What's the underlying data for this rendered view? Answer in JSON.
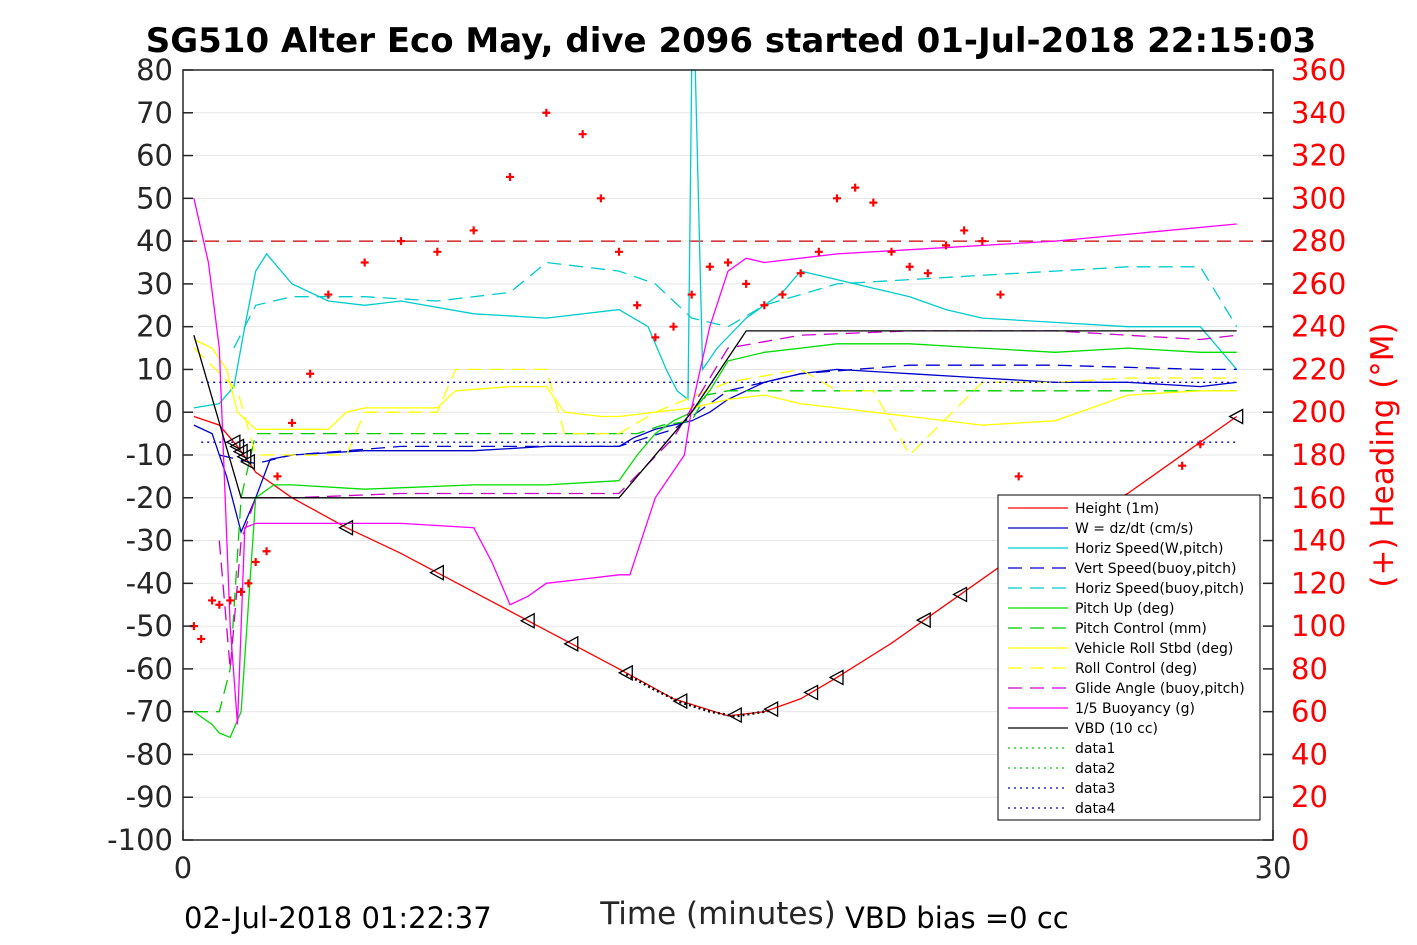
{
  "chart_data": {
    "type": "line",
    "title": "SG510 Alter Eco May, dive 2096 started 01-Jul-2018 22:15:03",
    "xlabel": "Time (minutes)",
    "ylabel_right": "(+) Heading (°M)",
    "xlim": [
      0,
      30
    ],
    "ylim_left": [
      -100,
      80
    ],
    "ylim_right": [
      0,
      360
    ],
    "x_ticks": [
      "0",
      "30"
    ],
    "y_ticks_left": [
      "80",
      "70",
      "60",
      "50",
      "40",
      "30",
      "20",
      "10",
      "0",
      "-10",
      "-20",
      "-30",
      "-40",
      "-50",
      "-60",
      "-70",
      "-80",
      "-90",
      "-100"
    ],
    "y_ticks_right": [
      "360",
      "340",
      "320",
      "300",
      "280",
      "260",
      "240",
      "220",
      "200",
      "180",
      "160",
      "140",
      "120",
      "100",
      "80",
      "60",
      "40",
      "20",
      "0"
    ],
    "grid": true,
    "legend_position": "bottom-right",
    "footer_left": "02-Jul-2018 01:22:37",
    "footer_right": "VBD bias =0 cc",
    "target_heading_deg": 280,
    "series": [
      {
        "name": "Height (1m)",
        "color": "#ff0000",
        "style": "solid",
        "x": [
          0.3,
          1.0,
          1.5,
          2.0,
          3.0,
          4.5,
          6.0,
          8.0,
          10.0,
          12.0,
          13.5,
          15.0,
          16.0,
          17.0,
          18.0,
          19.5,
          21.0,
          22.5,
          24.0,
          26.0,
          28.0,
          29.0
        ],
        "y": [
          -1,
          -3,
          -8,
          -14,
          -20,
          -27,
          -33,
          -42,
          -51,
          -60,
          -67,
          -71,
          -70,
          -67,
          -62,
          -54,
          -45,
          -36,
          -28,
          -19,
          -7,
          -1
        ]
      },
      {
        "name": "W = dz/dt (cm/s)",
        "color": "#0000cc",
        "style": "solid",
        "x": [
          0.3,
          0.8,
          1.2,
          1.6,
          2.0,
          2.4,
          3.0,
          5.0,
          8.0,
          10.0,
          12.0,
          12.4,
          13.0,
          14.0,
          14.5,
          15.0,
          16.0,
          17.0,
          18.0,
          20.0,
          22.0,
          24.0,
          26.0,
          28.0,
          29.0
        ],
        "y": [
          -3,
          -5,
          -15,
          -28,
          -20,
          -11,
          -10,
          -9,
          -9,
          -8,
          -8,
          -6,
          -4,
          -2,
          0,
          3,
          7,
          9,
          10,
          9,
          8,
          7,
          7,
          6,
          7
        ]
      },
      {
        "name": "Horiz Speed(W,pitch)",
        "color": "#00cccc",
        "style": "solid",
        "x": [
          0.3,
          1.0,
          1.4,
          1.7,
          2.0,
          2.3,
          3.0,
          4.0,
          5.0,
          6.0,
          8.0,
          10.0,
          12.0,
          12.8,
          13.3,
          13.6,
          13.9,
          14.0,
          14.1,
          14.3,
          14.7,
          15.5,
          16.5,
          17.0,
          18.0,
          19.0,
          20.0,
          21.0,
          22.0,
          24.0,
          26.0,
          28.0,
          29.0
        ],
        "y": [
          1,
          2,
          6,
          20,
          33,
          37,
          30,
          26,
          25,
          26,
          23,
          22,
          24,
          20,
          10,
          5,
          3,
          80,
          80,
          10,
          15,
          22,
          28,
          33,
          31,
          29,
          27,
          24,
          22,
          21,
          20,
          20,
          10
        ]
      },
      {
        "name": "Vert Speed(buoy,pitch)",
        "color": "#0000cc",
        "style": "dashed",
        "x": [
          1.0,
          2.0,
          3.0,
          6.0,
          10.0,
          12.0,
          13.5,
          15.0,
          17.0,
          20.0,
          24.0,
          28.0,
          29.0
        ],
        "y": [
          -10,
          -12,
          -10,
          -8,
          -8,
          -8,
          -4,
          5,
          9,
          11,
          11,
          10,
          10
        ]
      },
      {
        "name": "Horiz Speed(buoy,pitch)",
        "color": "#00cccc",
        "style": "dashed",
        "x": [
          1.4,
          2.0,
          3.0,
          5.0,
          7.0,
          9.0,
          10.0,
          11.0,
          12.0,
          13.0,
          14.0,
          15.0,
          16.0,
          18.0,
          20.0,
          22.0,
          24.0,
          26.0,
          28.0,
          29.0
        ],
        "y": [
          15,
          25,
          27,
          27,
          26,
          28,
          35,
          34,
          33,
          30,
          22,
          20,
          25,
          30,
          31,
          32,
          33,
          34,
          34,
          20
        ]
      },
      {
        "name": "Pitch Up (deg)",
        "color": "#00dd00",
        "style": "solid",
        "x": [
          0.3,
          0.8,
          1.0,
          1.3,
          1.6,
          2.0,
          2.5,
          3.0,
          5.0,
          8.0,
          10.0,
          12.0,
          12.5,
          13.0,
          13.5,
          14.0,
          14.5,
          15.0,
          16.0,
          17.0,
          18.0,
          20.0,
          22.0,
          24.0,
          26.0,
          28.0,
          29.0
        ],
        "y": [
          -70,
          -73,
          -75,
          -76,
          -70,
          -20,
          -17,
          -17,
          -18,
          -17,
          -17,
          -16,
          -10,
          -5,
          -2,
          0,
          5,
          12,
          14,
          15,
          16,
          16,
          15,
          14,
          15,
          14,
          14
        ]
      },
      {
        "name": "Pitch Control (mm)",
        "color": "#00cc00",
        "style": "dashed",
        "x": [
          0.3,
          1.0,
          1.3,
          1.6,
          2.0,
          12.0,
          12.5,
          13.2,
          14.0,
          14.4,
          15.0,
          29.0
        ],
        "y": [
          -70,
          -70,
          -60,
          -20,
          -5,
          -5,
          -5,
          -3,
          -2,
          4,
          5,
          5
        ]
      },
      {
        "name": "Vehicle Roll Stbd (deg)",
        "color": "#ffff00",
        "style": "solid",
        "x": [
          0.3,
          0.8,
          1.2,
          1.5,
          2.0,
          3.0,
          4.0,
          4.5,
          5.0,
          6.0,
          7.0,
          7.5,
          9.0,
          10.0,
          10.5,
          11.5,
          12.0,
          13.0,
          14.0,
          15.0,
          16.0,
          17.0,
          18.0,
          20.0,
          22.0,
          24.0,
          26.0,
          28.0,
          29.0
        ],
        "y": [
          17,
          15,
          10,
          0,
          -4,
          -4,
          -4,
          0,
          1,
          1,
          1,
          5,
          6,
          6,
          0,
          -1,
          -1,
          0,
          1,
          3,
          4,
          2,
          1,
          -1,
          -3,
          -2,
          4,
          5,
          5
        ]
      },
      {
        "name": "Roll Control (deg)",
        "color": "#ffff00",
        "style": "dashed",
        "x": [
          0.3,
          1.5,
          2.0,
          4.5,
          5.0,
          7.0,
          7.5,
          10.0,
          10.5,
          12.0,
          13.0,
          15.0,
          17.0,
          18.0,
          19.0,
          20.0,
          22.0,
          24.0,
          26.0,
          28.0,
          29.0
        ],
        "y": [
          15,
          5,
          -10,
          -10,
          0,
          0,
          10,
          10,
          -5,
          -5,
          0,
          7,
          10,
          5,
          5,
          -10,
          7,
          7,
          8,
          8,
          8
        ]
      },
      {
        "name": "Glide Angle (buoy,pitch)",
        "color": "#cc00cc",
        "style": "dashed",
        "x": [
          1.0,
          1.3,
          1.6,
          2.0,
          3.0,
          6.0,
          10.0,
          12.0,
          13.5,
          15.0,
          17.0,
          20.0,
          24.0,
          28.0,
          29.0
        ],
        "y": [
          -30,
          -60,
          -30,
          -20,
          -20,
          -19,
          -19,
          -19,
          -6,
          15,
          18,
          19,
          19,
          17,
          18
        ]
      },
      {
        "name": "1/5 Buoyancy (g)",
        "color": "#ff00ff",
        "style": "solid",
        "x": [
          0.3,
          0.7,
          1.0,
          1.3,
          1.5,
          1.7,
          2.0,
          3.0,
          6.0,
          8.0,
          8.5,
          9.0,
          9.5,
          10.0,
          11.0,
          12.0,
          12.3,
          13.0,
          13.8,
          14.0,
          14.5,
          15.0,
          15.5,
          16.0,
          17.0,
          18.0,
          20.0,
          24.0,
          29.0
        ],
        "y": [
          50,
          35,
          15,
          -50,
          -73,
          -27,
          -26,
          -26,
          -26,
          -27,
          -35,
          -45,
          -43,
          -40,
          -39,
          -38,
          -38,
          -20,
          -10,
          1,
          20,
          33,
          36,
          35,
          36,
          37,
          38,
          40,
          44
        ]
      },
      {
        "name": "VBD (10 cc)",
        "color": "#000000",
        "style": "solid",
        "x": [
          0.3,
          1.6,
          2.0,
          12.0,
          14.0,
          15.5,
          29.0
        ],
        "y": [
          18,
          -20,
          -20,
          -20,
          0,
          19,
          19
        ]
      },
      {
        "name": "data1",
        "color": "#00cc00",
        "style": "dotted",
        "x": [],
        "y": []
      },
      {
        "name": "data2",
        "color": "#00cc00",
        "style": "dotted",
        "x": [],
        "y": []
      },
      {
        "name": "data3",
        "color": "#0000cc",
        "style": "dotted",
        "x": [
          0.5,
          29.0
        ],
        "y": [
          7,
          7
        ]
      },
      {
        "name": "data4",
        "color": "#0000cc",
        "style": "dotted",
        "x": [
          0.5,
          29.0
        ],
        "y": [
          -7,
          -7
        ]
      }
    ],
    "heading_points": {
      "x": [
        0.3,
        0.5,
        0.8,
        1.0,
        1.3,
        1.6,
        1.8,
        2.0,
        2.3,
        2.6,
        3.0,
        3.5,
        4.0,
        5.0,
        6.0,
        7.0,
        8.0,
        9.0,
        10.0,
        11.0,
        11.5,
        12.0,
        12.5,
        13.0,
        13.5,
        14.0,
        14.5,
        15.0,
        15.5,
        16.0,
        16.5,
        17.0,
        17.5,
        18.0,
        18.5,
        19.0,
        19.5,
        20.0,
        20.5,
        21.0,
        21.5,
        22.0,
        22.5,
        23.0,
        23.5,
        24.0,
        25.0,
        25.5,
        26.0,
        27.0,
        27.5,
        28.0
      ],
      "y": [
        100,
        94,
        112,
        110,
        112,
        116,
        120,
        130,
        135,
        170,
        195,
        218,
        255,
        270,
        280,
        275,
        285,
        310,
        340,
        330,
        300,
        275,
        250,
        235,
        240,
        255,
        268,
        270,
        260,
        250,
        255,
        265,
        275,
        300,
        305,
        298,
        275,
        268,
        265,
        278,
        285,
        280,
        255,
        170,
        140,
        115,
        105,
        100,
        102,
        150,
        175,
        185
      ]
    }
  }
}
